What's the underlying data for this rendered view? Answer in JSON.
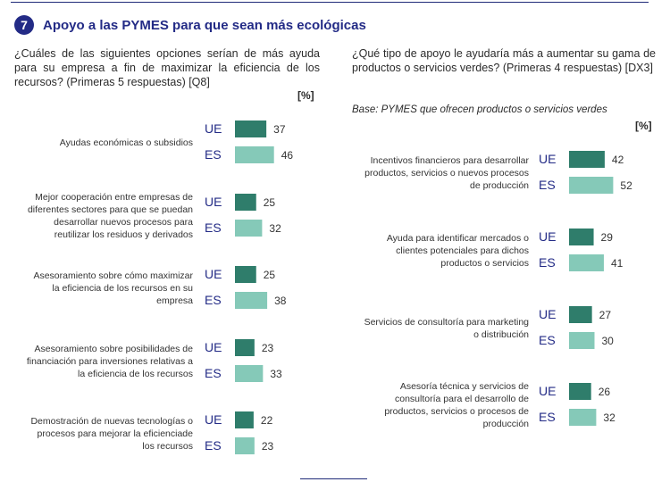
{
  "header": {
    "number": "7",
    "title": "Apoyo a las PYMES para que sean más ecológicas"
  },
  "colors": {
    "ue": "#2f7d6b",
    "es": "#85c9b8",
    "accent": "#232b86"
  },
  "chart_data": [
    {
      "type": "bar",
      "orientation": "horizontal",
      "question": "¿Cuáles de las siguientes opciones serían de más ayuda para su empresa a fin de maximizar la eficiencia de los recursos? (Primeras 5 respuestas) [Q8]",
      "unit_label": "[%]",
      "base": "",
      "categories": [
        [
          "Ayudas económicas o subsidios"
        ],
        [
          "Mejor cooperación entre empresas de",
          "diferentes sectores para que se puedan",
          "desarrollar nuevos procesos para",
          "reutilizar los residuos y derivados"
        ],
        [
          "Asesoramiento sobre cómo maximizar",
          "la eficiencia de los recursos en su",
          "empresa"
        ],
        [
          "Asesoramiento sobre posibilidades de",
          "financiación para inversiones relativas a",
          "la eficiencia de los recursos"
        ],
        [
          "Demostración de nuevas tecnologías o",
          "procesos para mejorar la eficienciade",
          "los recursos"
        ]
      ],
      "series": [
        {
          "name": "UE",
          "values": [
            37,
            25,
            25,
            23,
            22
          ]
        },
        {
          "name": "ES",
          "values": [
            46,
            32,
            38,
            33,
            23
          ]
        }
      ],
      "xlim": [
        0,
        100
      ]
    },
    {
      "type": "bar",
      "orientation": "horizontal",
      "question": "¿Qué tipo de apoyo le ayudaría más a aumentar su gama de productos o servicios verdes? (Primeras 4 respuestas) [DX3]",
      "unit_label": "[%]",
      "base": "Base: PYMES que ofrecen productos o servicios verdes",
      "categories": [
        [
          "Incentivos financieros para desarrollar",
          "productos, servicios o nuevos procesos",
          "de producción"
        ],
        [
          "Ayuda para identificar mercados o",
          "clientes potenciales para dichos",
          "productos o servicios"
        ],
        [
          "Servicios de consultoría para marketing",
          "o distribución"
        ],
        [
          "Asesoría técnica y servicios de",
          "consultoría para el desarrollo de",
          "productos, servicios o procesos de",
          "producción"
        ]
      ],
      "series": [
        {
          "name": "UE",
          "values": [
            42,
            29,
            27,
            26
          ]
        },
        {
          "name": "ES",
          "values": [
            52,
            41,
            30,
            32
          ]
        }
      ],
      "xlim": [
        0,
        100
      ]
    }
  ]
}
